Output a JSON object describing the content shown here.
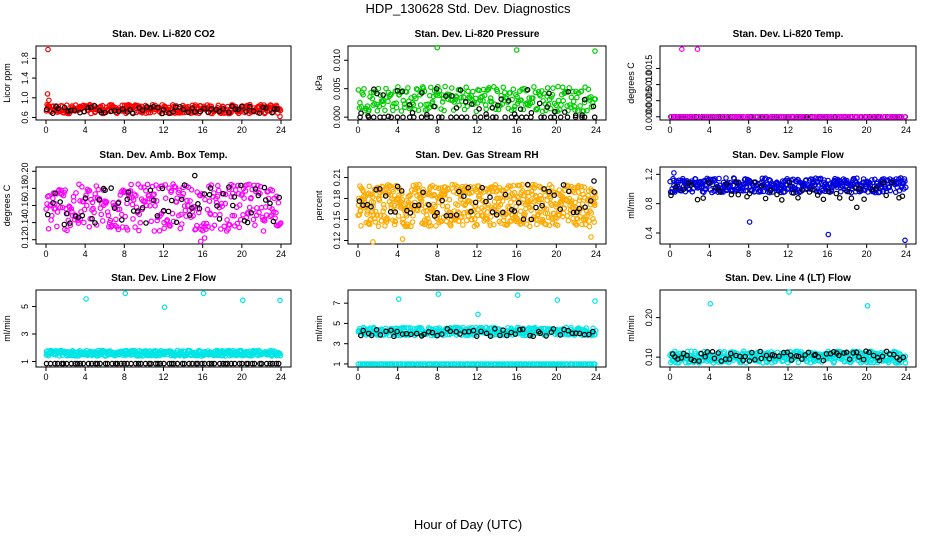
{
  "title": "HDP_130628  Std. Dev. Diagnostics",
  "x_axis_title": "Hour of Day (UTC)",
  "chart_data": [
    {
      "type": "scatter",
      "title": "Stan. Dev. Li-820 CO2",
      "ylabel": "Licor ppm",
      "xlim": [
        0,
        24
      ],
      "xticks": [
        0,
        4,
        8,
        12,
        16,
        20,
        24
      ],
      "ylim": [
        0.55,
        2.05
      ],
      "yticks": [
        0.6,
        1.0,
        1.4,
        1.8
      ],
      "ytick_labels": [
        "0.6",
        "1.0",
        "1.4",
        "1.8"
      ],
      "grid": false,
      "series": [
        {
          "color": "#ff0000",
          "band": [
            0.68,
            0.86
          ],
          "n": 320,
          "outliers": [
            [
              0.2,
              1.98
            ],
            [
              0.15,
              1.08
            ],
            [
              0.3,
              0.95
            ],
            [
              23.9,
              0.62
            ]
          ]
        },
        {
          "color": "#000000",
          "band": [
            0.68,
            0.84
          ],
          "n": 60,
          "outliers": []
        }
      ]
    },
    {
      "type": "scatter",
      "title": "Stan. Dev. Li-820 Pressure",
      "ylabel": "kPa",
      "xlim": [
        0,
        24
      ],
      "xticks": [
        0,
        4,
        8,
        12,
        16,
        20,
        24
      ],
      "ylim": [
        -0.0005,
        0.0125
      ],
      "yticks": [
        0.0,
        0.005,
        0.01
      ],
      "ytick_labels": [
        "0.000",
        "0.005",
        "0.010"
      ],
      "grid": false,
      "series": [
        {
          "color": "#00cc00",
          "band": [
            0.001,
            0.0055
          ],
          "n": 260,
          "outliers": [
            [
              8,
              0.0122
            ],
            [
              23.9,
              0.0116
            ],
            [
              16,
              0.0118
            ]
          ]
        },
        {
          "color": "#000000",
          "band": [
            0.0,
            0.005
          ],
          "n": 40,
          "outliers": []
        },
        {
          "color": "#000000",
          "band": [
            0.0,
            0.0
          ],
          "n": 40,
          "outliers": []
        }
      ]
    },
    {
      "type": "scatter",
      "title": "Stan. Dev. Li-820 Temp.",
      "ylabel": "degrees C",
      "xlim": [
        0,
        24
      ],
      "xticks": [
        0,
        4,
        8,
        12,
        16,
        20,
        24
      ],
      "ylim": [
        -0.0001,
        0.0022
      ],
      "yticks": [
        0.0,
        0.0005,
        0.001,
        0.0015
      ],
      "ytick_labels": [
        "0.0000",
        "0.0005",
        "0.0010",
        "0.0015"
      ],
      "grid": false,
      "series": [
        {
          "color": "#000000",
          "band": [
            0.0,
            0.0
          ],
          "n": 100,
          "outliers": []
        },
        {
          "color": "#ff00ff",
          "band": [
            0.0,
            0.0
          ],
          "n": 90,
          "outliers": [
            [
              1.2,
              0.0021
            ],
            [
              2.8,
              0.0021
            ]
          ]
        }
      ]
    },
    {
      "type": "scatter",
      "title": "Stan. Dev. Amb. Box Temp.",
      "ylabel": "degrees C",
      "xlim": [
        0,
        24
      ],
      "xticks": [
        0,
        4,
        8,
        12,
        16,
        20,
        24
      ],
      "ylim": [
        0.115,
        0.205
      ],
      "yticks": [
        0.12,
        0.14,
        0.16,
        0.18,
        0.2
      ],
      "ytick_labels": [
        "0.12",
        "0.14",
        "0.16",
        "0.18",
        "0.20"
      ],
      "grid": false,
      "series": [
        {
          "color": "#ff00ff",
          "band": [
            0.13,
            0.185
          ],
          "n": 330,
          "outliers": [
            [
              15.8,
              0.118
            ],
            [
              16.2,
              0.122
            ]
          ]
        },
        {
          "color": "#000000",
          "band": [
            0.135,
            0.185
          ],
          "n": 60,
          "outliers": [
            [
              15.2,
              0.195
            ]
          ]
        }
      ]
    },
    {
      "type": "scatter",
      "title": "Stan. Dev. Gas Stream RH",
      "ylabel": "percent",
      "xlim": [
        0,
        24
      ],
      "xticks": [
        0,
        4,
        8,
        12,
        16,
        20,
        24
      ],
      "ylim": [
        0.115,
        0.225
      ],
      "yticks": [
        0.12,
        0.15,
        0.18,
        0.21
      ],
      "ytick_labels": [
        "0.12",
        "0.15",
        "0.18",
        "0.21"
      ],
      "grid": false,
      "series": [
        {
          "color": "#ffaa00",
          "band": [
            0.14,
            0.2
          ],
          "n": 600,
          "outliers": [
            [
              1.5,
              0.118
            ],
            [
              4.5,
              0.122
            ],
            [
              23.5,
              0.125
            ]
          ]
        },
        {
          "color": "#000000",
          "band": [
            0.15,
            0.2
          ],
          "n": 55,
          "outliers": [
            [
              23.8,
              0.205
            ]
          ]
        }
      ]
    },
    {
      "type": "scatter",
      "title": "Stan. Dev. Sample Flow",
      "ylabel": "ml/min",
      "xlim": [
        0,
        24
      ],
      "xticks": [
        0,
        4,
        8,
        12,
        16,
        20,
        24
      ],
      "ylim": [
        0.25,
        1.3
      ],
      "yticks": [
        0.4,
        0.8,
        1.2
      ],
      "ytick_labels": [
        "0.4",
        "0.8",
        "1.2"
      ],
      "grid": false,
      "series": [
        {
          "color": "#0000dd",
          "band": [
            0.95,
            1.15
          ],
          "n": 420,
          "outliers": [
            [
              8.1,
              0.55
            ],
            [
              16.1,
              0.38
            ],
            [
              23.9,
              0.3
            ],
            [
              0.4,
              1.22
            ]
          ]
        },
        {
          "color": "#000000",
          "band": [
            0.85,
            1.1
          ],
          "n": 45,
          "outliers": [
            [
              19,
              0.75
            ]
          ]
        }
      ]
    },
    {
      "type": "scatter",
      "title": "Stan. Dev. Line 2 Flow",
      "ylabel": "ml/min",
      "xlim": [
        0,
        24
      ],
      "xticks": [
        0,
        4,
        8,
        12,
        16,
        20,
        24
      ],
      "ylim": [
        0.6,
        6.2
      ],
      "yticks": [
        1,
        3,
        5
      ],
      "ytick_labels": [
        "1",
        "3",
        "5"
      ],
      "grid": false,
      "series": [
        {
          "color": "#00e5e5",
          "band": [
            1.4,
            1.8
          ],
          "n": 420,
          "outliers": [
            [
              4.1,
              5.55
            ],
            [
              8.1,
              5.95
            ],
            [
              12.1,
              4.95
            ],
            [
              16.1,
              5.95
            ],
            [
              20.1,
              5.45
            ],
            [
              23.9,
              5.45
            ]
          ]
        },
        {
          "color": "#000000",
          "band": [
            0.85,
            0.85
          ],
          "n": 70,
          "outliers": []
        }
      ]
    },
    {
      "type": "scatter",
      "title": "Stan. Dev. Line 3 Flow",
      "ylabel": "ml/min",
      "xlim": [
        0,
        24
      ],
      "xticks": [
        0,
        4,
        8,
        12,
        16,
        20,
        24
      ],
      "ylim": [
        0.7,
        8.3
      ],
      "yticks": [
        1,
        3,
        5,
        7
      ],
      "ytick_labels": [
        "1",
        "3",
        "5",
        "7"
      ],
      "grid": false,
      "series": [
        {
          "color": "#00e5e5",
          "band": [
            3.8,
            4.6
          ],
          "n": 380,
          "outliers": [
            [
              4.1,
              7.4
            ],
            [
              8.1,
              7.9
            ],
            [
              12.1,
              5.9
            ],
            [
              16.1,
              7.8
            ],
            [
              20.1,
              7.3
            ],
            [
              23.9,
              7.2
            ]
          ]
        },
        {
          "color": "#00e5e5",
          "band": [
            1.0,
            1.0
          ],
          "n": 150,
          "outliers": []
        },
        {
          "color": "#000000",
          "band": [
            3.7,
            4.5
          ],
          "n": 55,
          "outliers": []
        }
      ]
    },
    {
      "type": "scatter",
      "title": "Stan. Dev. Line 4 (LT) Flow",
      "ylabel": "ml/min",
      "xlim": [
        0,
        24
      ],
      "xticks": [
        0,
        4,
        8,
        12,
        16,
        20,
        24
      ],
      "ylim": [
        0.075,
        0.27
      ],
      "yticks": [
        0.1,
        0.2
      ],
      "ytick_labels": [
        "0.10",
        "0.20"
      ],
      "grid": false,
      "series": [
        {
          "color": "#00e5e5",
          "band": [
            0.085,
            0.115
          ],
          "n": 420,
          "outliers": [
            [
              4.1,
              0.235
            ],
            [
              12.1,
              0.265
            ],
            [
              20.1,
              0.23
            ]
          ]
        },
        {
          "color": "#000000",
          "band": [
            0.09,
            0.115
          ],
          "n": 70,
          "outliers": []
        }
      ]
    }
  ]
}
